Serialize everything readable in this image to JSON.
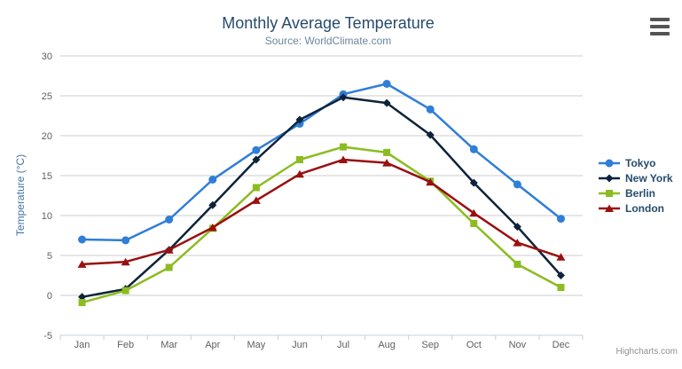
{
  "chart_data": {
    "type": "line",
    "title": "Monthly Average Temperature",
    "subtitle": "Source: WorldClimate.com",
    "xlabel": "",
    "ylabel": "Temperature (°C)",
    "categories": [
      "Jan",
      "Feb",
      "Mar",
      "Apr",
      "May",
      "Jun",
      "Jul",
      "Aug",
      "Sep",
      "Oct",
      "Nov",
      "Dec"
    ],
    "ylim": [
      -5,
      30
    ],
    "ytick_step": 5,
    "grid": true,
    "legend_position": "right",
    "credits": "Highcharts.com",
    "series": [
      {
        "name": "Tokyo",
        "color": "#2f7ed8",
        "marker": "circle",
        "values": [
          7.0,
          6.9,
          9.5,
          14.5,
          18.2,
          21.5,
          25.2,
          26.5,
          23.3,
          18.3,
          13.9,
          9.6
        ]
      },
      {
        "name": "New York",
        "color": "#0d233a",
        "marker": "diamond",
        "values": [
          -0.2,
          0.8,
          5.7,
          11.3,
          17.0,
          22.0,
          24.8,
          24.1,
          20.1,
          14.1,
          8.6,
          2.5
        ]
      },
      {
        "name": "Berlin",
        "color": "#8bbc21",
        "marker": "square",
        "values": [
          -0.9,
          0.6,
          3.5,
          8.4,
          13.5,
          17.0,
          18.6,
          17.9,
          14.3,
          9.0,
          3.9,
          1.0
        ]
      },
      {
        "name": "London",
        "color": "#9a0f0f",
        "marker": "triangle",
        "values": [
          3.9,
          4.2,
          5.7,
          8.5,
          11.9,
          15.2,
          17.0,
          16.6,
          14.2,
          10.3,
          6.6,
          4.8
        ]
      }
    ]
  },
  "styles": {
    "grid_color": "#cccccc",
    "axis_line_color": "#c0d0e0",
    "axis_label_color": "#606060",
    "title_color": "#274b6d",
    "subtitle_color": "#6d869f",
    "legend_text_color": "#274b6d",
    "credits_color": "#909090"
  },
  "icons": {
    "context_menu": "hamburger-icon"
  }
}
